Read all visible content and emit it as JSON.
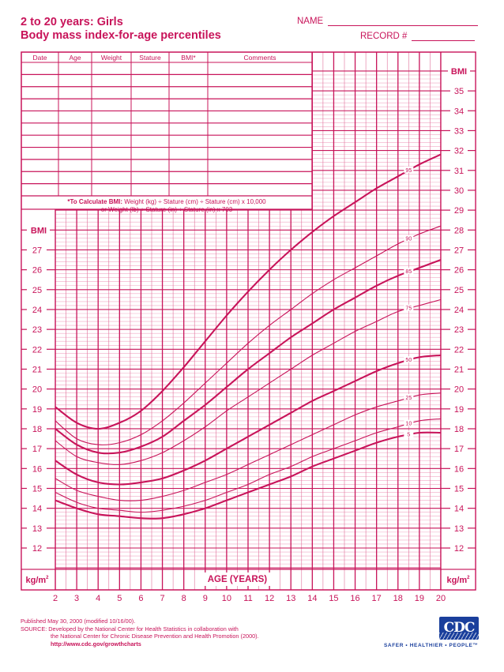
{
  "header": {
    "title_line1": "2 to 20 years: Girls",
    "title_line2": "Body mass index-for-age percentiles",
    "name_label": "NAME",
    "record_label": "RECORD #"
  },
  "record_table": {
    "columns": [
      "Date",
      "Age",
      "Weight",
      "Stature",
      "BMI*",
      "Comments"
    ],
    "empty_rows": 11,
    "formula_line1_bold": "*To Calculate BMI:",
    "formula_line1_rest": " Weight (kg) ÷ Stature (cm) ÷ Stature (cm) x 10,000",
    "formula_line2": "or Weight (lb) ÷ Stature (in) ÷ Stature (in) x 703"
  },
  "footer": {
    "published": "Published May 30, 2000 (modified 10/16/00).",
    "source_label": "SOURCE:",
    "source_line1": "Developed by the National Center for Health Statistics in collaboration with",
    "source_line2": "the National Center for Chronic Disease Prevention and Health Promotion (2000).",
    "url": "http://www.cdc.gov/growthcharts",
    "logo_text": "CDC",
    "tagline": "SAFER • HEALTHIER • PEOPLE™"
  },
  "colors": {
    "accent": "#c8145a",
    "grid_minor": "#f0a8c4",
    "cdc_blue": "#1a3f9c"
  },
  "chart_data": {
    "type": "line",
    "title": "2 to 20 years: Girls — Body mass index-for-age percentiles",
    "xlabel": "AGE (YEARS)",
    "ylabel": "BMI",
    "y_unit_label": "kg/m²",
    "xlim": [
      2,
      20
    ],
    "ylim_left_lower": [
      12,
      27
    ],
    "ylim_right": [
      12,
      35
    ],
    "x_ticks": [
      2,
      3,
      4,
      5,
      6,
      7,
      8,
      9,
      10,
      11,
      12,
      13,
      14,
      15,
      16,
      17,
      18,
      19,
      20
    ],
    "y_ticks_left": [
      12,
      13,
      14,
      15,
      16,
      17,
      18,
      19,
      20,
      21,
      22,
      23,
      24,
      25,
      26,
      27
    ],
    "y_ticks_right": [
      12,
      13,
      14,
      15,
      16,
      17,
      18,
      19,
      20,
      21,
      22,
      23,
      24,
      25,
      26,
      27,
      28,
      29,
      30,
      31,
      32,
      33,
      34,
      35
    ],
    "grid": true,
    "x": [
      2,
      3,
      4,
      5,
      6,
      7,
      8,
      9,
      10,
      11,
      12,
      13,
      14,
      15,
      16,
      17,
      18,
      19,
      20
    ],
    "series": [
      {
        "name": "95",
        "weight": "bold",
        "values": [
          19.1,
          18.3,
          18.0,
          18.3,
          18.9,
          19.9,
          21.1,
          22.4,
          23.7,
          24.9,
          26.0,
          27.0,
          27.9,
          28.7,
          29.4,
          30.1,
          30.7,
          31.3,
          31.8
        ]
      },
      {
        "name": "90",
        "weight": "thin",
        "values": [
          18.4,
          17.5,
          17.2,
          17.3,
          17.7,
          18.4,
          19.3,
          20.3,
          21.3,
          22.3,
          23.2,
          24.0,
          24.8,
          25.5,
          26.1,
          26.7,
          27.3,
          27.8,
          28.2
        ]
      },
      {
        "name": "85",
        "weight": "bold",
        "values": [
          18.0,
          17.2,
          16.8,
          16.8,
          17.1,
          17.6,
          18.4,
          19.2,
          20.1,
          21.0,
          21.8,
          22.6,
          23.3,
          24.0,
          24.6,
          25.2,
          25.7,
          26.1,
          26.5
        ]
      },
      {
        "name": "75",
        "weight": "thin",
        "values": [
          17.4,
          16.6,
          16.3,
          16.2,
          16.4,
          16.8,
          17.4,
          18.1,
          18.9,
          19.6,
          20.3,
          21.0,
          21.7,
          22.3,
          22.9,
          23.4,
          23.9,
          24.2,
          24.5
        ]
      },
      {
        "name": "50",
        "weight": "bold",
        "values": [
          16.4,
          15.7,
          15.3,
          15.2,
          15.3,
          15.5,
          15.9,
          16.4,
          17.0,
          17.6,
          18.2,
          18.8,
          19.4,
          19.9,
          20.4,
          20.9,
          21.3,
          21.6,
          21.7
        ]
      },
      {
        "name": "25",
        "weight": "thin",
        "values": [
          15.5,
          14.9,
          14.6,
          14.4,
          14.4,
          14.6,
          14.9,
          15.3,
          15.7,
          16.2,
          16.7,
          17.2,
          17.7,
          18.2,
          18.7,
          19.1,
          19.4,
          19.7,
          19.8
        ]
      },
      {
        "name": "10",
        "weight": "thin",
        "values": [
          14.8,
          14.3,
          14.0,
          13.9,
          13.8,
          13.9,
          14.1,
          14.4,
          14.8,
          15.2,
          15.7,
          16.1,
          16.6,
          17.0,
          17.4,
          17.8,
          18.1,
          18.4,
          18.5
        ]
      },
      {
        "name": "5",
        "weight": "bold",
        "values": [
          14.4,
          14.0,
          13.7,
          13.6,
          13.5,
          13.5,
          13.7,
          14.0,
          14.4,
          14.8,
          15.2,
          15.6,
          16.1,
          16.5,
          16.9,
          17.3,
          17.6,
          17.8,
          17.8
        ]
      }
    ],
    "annotations": [
      "95",
      "90",
      "85",
      "75",
      "50",
      "25",
      "10",
      "5"
    ]
  }
}
